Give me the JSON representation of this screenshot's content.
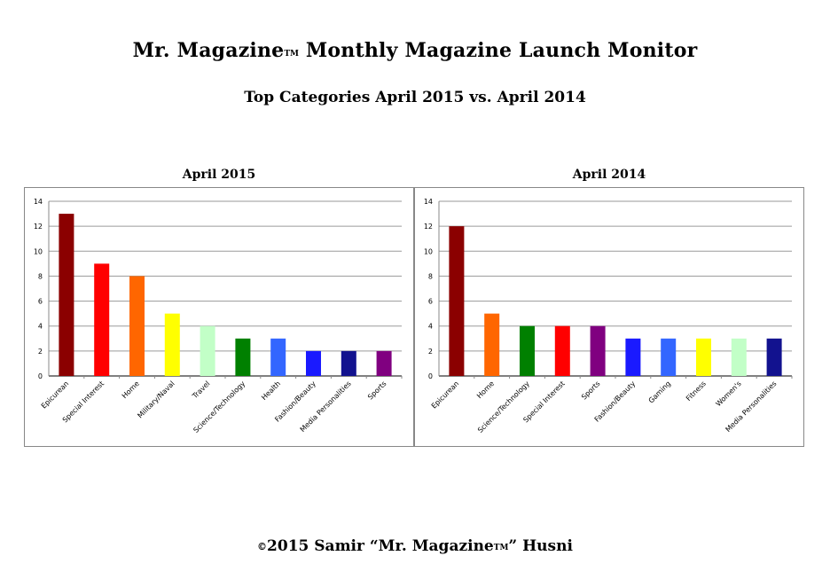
{
  "header": {
    "title_pre": "Mr. Magazine",
    "title_tm": "TM",
    "title_post": " Monthly Magazine Launch Monitor",
    "subtitle": "Top Categories April 2015 vs. April 2014"
  },
  "footer": {
    "copyright_symbol": "©",
    "text_pre": "2015 Samir “Mr. Magazine",
    "text_tm": "TM",
    "text_post": "” Husni"
  },
  "chart_data": [
    {
      "type": "bar",
      "title": "April 2015",
      "xlabel": "",
      "ylabel": "",
      "ylim": [
        0,
        14
      ],
      "yticks": [
        0,
        2,
        4,
        6,
        8,
        10,
        12,
        14
      ],
      "grid": true,
      "categories": [
        "Epicurean",
        "Special Interest",
        "Home",
        "Military/Naval",
        "Travel",
        "Science/Technology",
        "Health",
        "Fashion/Beauty",
        "Media Personalities",
        "Sports"
      ],
      "values": [
        13,
        9,
        8,
        5,
        4,
        3,
        3,
        2,
        2,
        2
      ],
      "colors": [
        "#8b0000",
        "#ff0000",
        "#ff6600",
        "#ffff00",
        "#c2ffc7",
        "#008000",
        "#3366ff",
        "#1a1aff",
        "#12128f",
        "#800080"
      ]
    },
    {
      "type": "bar",
      "title": "April 2014",
      "xlabel": "",
      "ylabel": "",
      "ylim": [
        0,
        14
      ],
      "yticks": [
        0,
        2,
        4,
        6,
        8,
        10,
        12,
        14
      ],
      "grid": true,
      "categories": [
        "Epicurean",
        "Home",
        "Science/Technology",
        "Special Interest",
        "Sports",
        "Fashion/Beauty",
        "Gaming",
        "Fitness",
        "Women's",
        "Media Personalities"
      ],
      "values": [
        12,
        5,
        4,
        4,
        4,
        3,
        3,
        3,
        3,
        3
      ],
      "colors": [
        "#8b0000",
        "#ff6600",
        "#008000",
        "#ff0000",
        "#800080",
        "#1a1aff",
        "#3366ff",
        "#ffff00",
        "#c2ffc7",
        "#12128f"
      ]
    }
  ]
}
